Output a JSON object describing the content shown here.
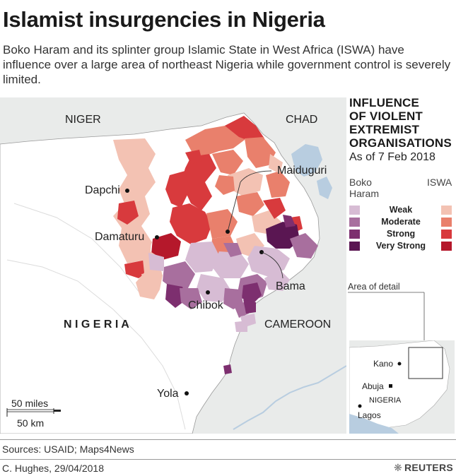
{
  "header": {
    "title": "Islamist insurgencies in Nigeria",
    "subtitle": "Boko Haram and its splinter group Islamic State in West Africa (ISWA) have influence over a large area of northeast Nigeria while government control is severely limited."
  },
  "map": {
    "countries": {
      "niger": "NIGER",
      "chad": "CHAD",
      "nigeria": "N I G E R I A",
      "cameroon": "CAMEROON"
    },
    "cities": {
      "maiduguri": "Maiduguri",
      "dapchi": "Dapchi",
      "damaturu": "Damaturu",
      "bama": "Bama",
      "chibok": "Chibok",
      "yola": "Yola"
    },
    "scale": {
      "miles": "50 miles",
      "km": "50 km"
    }
  },
  "legend": {
    "heading_line1": "INFLUENCE",
    "heading_line2": "OF VIOLENT",
    "heading_line3": "EXTREMIST",
    "heading_line4": "ORGANISATIONS",
    "date": "As of 7 Feb 2018",
    "boko_line1": "Boko",
    "boko_line2": "Haram",
    "iswa": "ISWA",
    "levels": [
      {
        "label": "Weak",
        "boko_color": "#d7bcd4",
        "iswa_color": "#f3c2b3"
      },
      {
        "label": "Moderate",
        "boko_color": "#a86f9e",
        "iswa_color": "#e9806c"
      },
      {
        "label": "Strong",
        "boko_color": "#7d2f6f",
        "iswa_color": "#d83a3d"
      },
      {
        "label": "Very Strong",
        "boko_color": "#5a1652",
        "iswa_color": "#b5182b"
      }
    ]
  },
  "inset": {
    "area_label": "Area of detail",
    "kano": "Kano",
    "abuja": "Abuja",
    "nigeria": "NIGERIA",
    "lagos": "Lagos"
  },
  "footer": {
    "sources": "Sources: USAID; Maps4News",
    "credit": "C. Hughes,  29/04/2018",
    "brand": "REUTERS"
  },
  "colors": {
    "land": "#ffffff",
    "neighbour": "#e9ebea",
    "water": "#b8cde0",
    "border": "#8a8a8a"
  }
}
